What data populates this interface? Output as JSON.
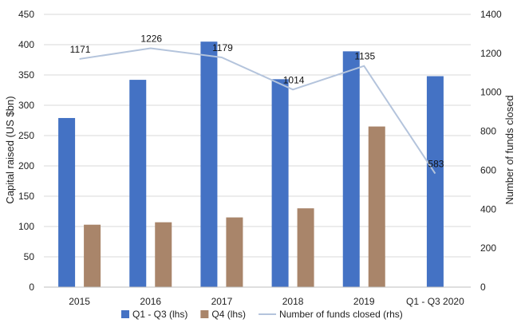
{
  "chart_data": {
    "type": "bar",
    "categories": [
      "2015",
      "2016",
      "2017",
      "2018",
      "2019",
      "Q1 - Q3 2020"
    ],
    "series": [
      {
        "name": "Q1 - Q3 (lhs)",
        "axis": "left",
        "type": "bar",
        "color": "#4472c4",
        "values": [
          279,
          342,
          405,
          343,
          389,
          348
        ]
      },
      {
        "name": "Q4 (lhs)",
        "axis": "left",
        "type": "bar",
        "color": "#a9856a",
        "values": [
          103,
          107,
          115,
          130,
          265,
          null
        ]
      },
      {
        "name": "Number of funds closed (rhs)",
        "axis": "right",
        "type": "line",
        "color": "#b4c4dc",
        "values": [
          1171,
          1226,
          1179,
          1014,
          1135,
          583
        ],
        "labels": [
          "1171",
          "1226",
          "1179",
          "1014",
          "1135",
          "583"
        ]
      }
    ],
    "ylabel": "Capital raised (US $bn)",
    "y2label": "Number of funds closed",
    "ylim": [
      0,
      450
    ],
    "y2lim": [
      0,
      1400
    ],
    "yticks": [
      "0",
      "50",
      "100",
      "150",
      "200",
      "250",
      "300",
      "350",
      "400",
      "450"
    ],
    "y2ticks": [
      "0",
      "200",
      "400",
      "600",
      "800",
      "1000",
      "1200",
      "1400"
    ],
    "grid": true,
    "legend": "bottom"
  }
}
